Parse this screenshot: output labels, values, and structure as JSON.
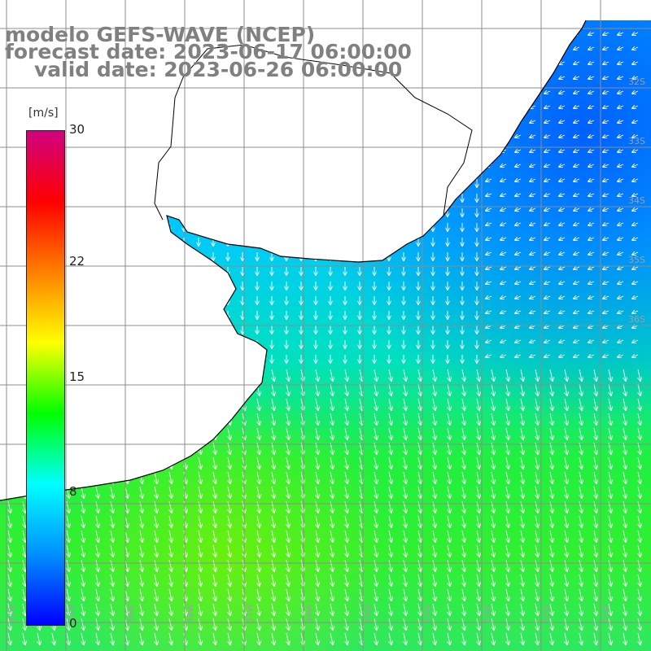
{
  "title": {
    "model_line": "modelo GEFS-WAVE (NCEP)",
    "forecast_line": "forecast date: 2023-06-17 06:00:00",
    "valid_line": "valid date: 2023-06-26 06:00:00"
  },
  "colorbar": {
    "unit": "[m/s]",
    "ticks": [
      "30",
      "22",
      "15",
      "8",
      "0"
    ],
    "tick_values": [
      30,
      22,
      15,
      8,
      0
    ],
    "range": [
      0,
      30
    ],
    "colors": [
      "#0000ff",
      "#0090ff",
      "#00ffff",
      "#00ff00",
      "#ffff00",
      "#ff8000",
      "#ff0000",
      "#d00080"
    ]
  },
  "map": {
    "variable": "wind speed and direction",
    "land_color": "#ffffff",
    "coastline_color": "#000000",
    "grid_color": "#8c8c8c",
    "arrow_color": "#ffffff",
    "lat_labels": [
      "32S",
      "33S",
      "34S",
      "35S",
      "36S"
    ],
    "lon_labels": [
      "51W",
      "52W",
      "53W",
      "54W",
      "55W",
      "56W",
      "57W",
      "58W",
      "59W",
      "60W",
      "61W"
    ]
  }
}
